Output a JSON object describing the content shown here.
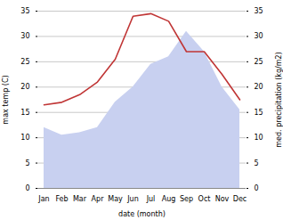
{
  "chart_data": {
    "type": "line",
    "categories": [
      "Jan",
      "Feb",
      "Mar",
      "Apr",
      "May",
      "Jun",
      "Jul",
      "Aug",
      "Sep",
      "Oct",
      "Nov",
      "Dec"
    ],
    "series": [
      {
        "type": "area",
        "axis": "y2",
        "color": "#c8d0f0",
        "values": [
          12.0,
          10.5,
          11.0,
          12.0,
          17.0,
          20.0,
          24.5,
          26.0,
          31.0,
          27.0,
          20.0,
          15.5
        ]
      },
      {
        "type": "line",
        "color": "#c03535",
        "values": [
          16.5,
          17.0,
          18.5,
          21.0,
          25.5,
          34.0,
          34.5,
          33.0,
          27.0,
          27.0,
          22.5,
          17.5
        ]
      }
    ],
    "xlabel": "date (month)",
    "ylabel": "max temp (C)",
    "y2label": "med. precipitation (kg/m2)",
    "ylim": [
      0,
      35
    ],
    "yticks": [
      0,
      5,
      10,
      15,
      20,
      25,
      30,
      35
    ],
    "y2lim": [
      0,
      35
    ],
    "y2ticks": [
      0,
      5,
      10,
      15,
      20,
      25,
      30,
      35
    ],
    "grid": true
  }
}
